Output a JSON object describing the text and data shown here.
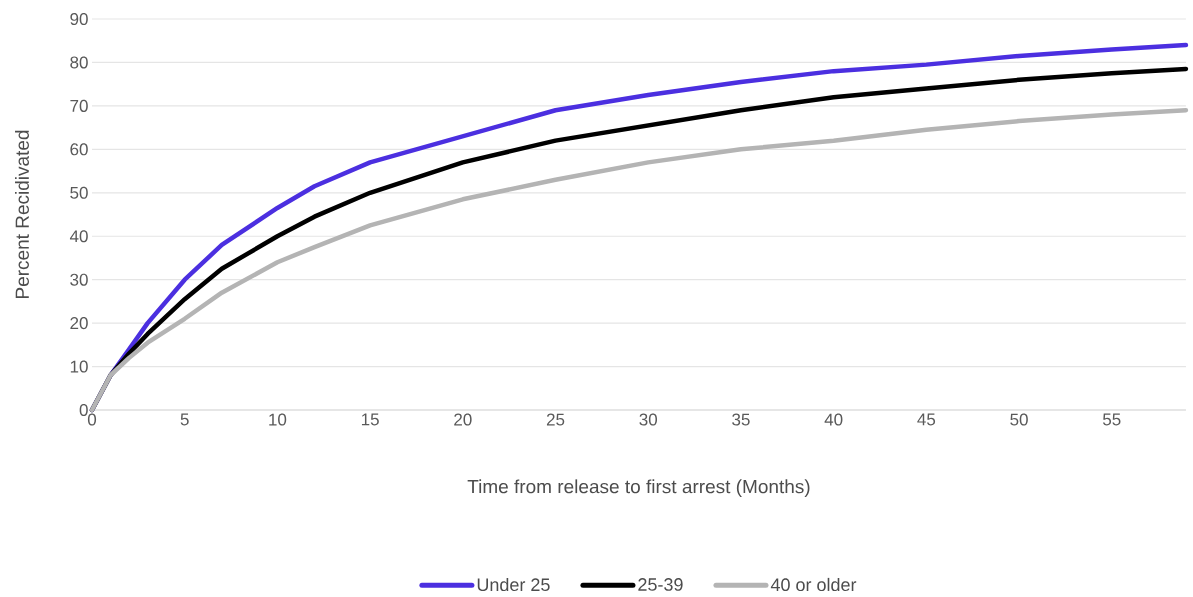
{
  "chart_data": {
    "type": "line",
    "xlabel": "Time from release to first arrest (Months)",
    "ylabel": "Percent Recidivated",
    "x": [
      0,
      1,
      2,
      3,
      5,
      7,
      10,
      12,
      15,
      20,
      25,
      30,
      35,
      40,
      45,
      50,
      55,
      59
    ],
    "series": [
      {
        "name": "Under 25",
        "color": "#4b2fe0",
        "values": [
          0,
          8,
          14,
          20,
          30,
          38,
          46.5,
          51.5,
          57,
          63,
          69,
          72.5,
          75.5,
          78,
          79.5,
          81.5,
          83,
          84
        ]
      },
      {
        "name": "25-39",
        "color": "#000000",
        "values": [
          0,
          8,
          13,
          17.5,
          25.5,
          32.5,
          40,
          44.5,
          50,
          57,
          62,
          65.5,
          69,
          72,
          74,
          76,
          77.5,
          78.5
        ]
      },
      {
        "name": "40 or older",
        "color": "#b4b4b4",
        "values": [
          0,
          8,
          12,
          15.5,
          21,
          27,
          34,
          37.5,
          42.5,
          48.5,
          53,
          57,
          60,
          62,
          64.5,
          66.5,
          68,
          69
        ]
      }
    ],
    "xlim": [
      0,
      59
    ],
    "ylim": [
      0,
      90
    ],
    "xticks": [
      0,
      5,
      10,
      15,
      20,
      25,
      30,
      35,
      40,
      45,
      50,
      55
    ],
    "yticks": [
      0,
      10,
      20,
      30,
      40,
      50,
      60,
      70,
      80,
      90
    ],
    "grid": "y",
    "legend": "bottom",
    "marker": "none",
    "line_style": "solid"
  }
}
